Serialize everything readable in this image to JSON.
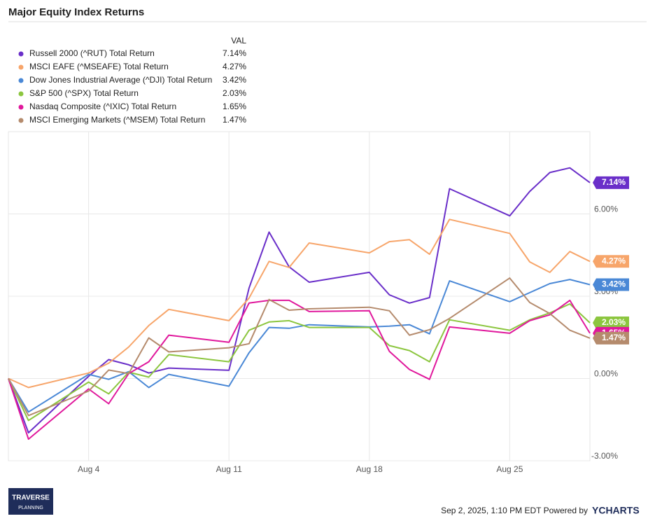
{
  "chart_data": {
    "type": "line",
    "title": "Major Equity Index Returns",
    "legend_title": "VAL",
    "x": [
      "Jul 31",
      "Aug 1",
      "Aug 4",
      "Aug 5",
      "Aug 6",
      "Aug 7",
      "Aug 8",
      "Aug 11",
      "Aug 12",
      "Aug 13",
      "Aug 14",
      "Aug 15",
      "Aug 18",
      "Aug 19",
      "Aug 20",
      "Aug 21",
      "Aug 22",
      "Aug 25",
      "Aug 26",
      "Aug 27",
      "Aug 28",
      "Aug 29"
    ],
    "xlim": [
      "Jul 31",
      "Aug 29"
    ],
    "xticks": [
      "Aug 4",
      "Aug 11",
      "Aug 18",
      "Aug 25"
    ],
    "ylim": [
      -3,
      9
    ],
    "yticks": [
      {
        "value": -3,
        "label": "-3.00%"
      },
      {
        "value": 0,
        "label": "0.00%"
      },
      {
        "value": 3,
        "label": "3.00%"
      },
      {
        "value": 6,
        "label": "6.00%"
      }
    ],
    "grid": true,
    "series": [
      {
        "name": "Russell 2000 (^RUT) Total Return",
        "color": "#6a2fc9",
        "values": [
          0,
          -1.98,
          0.08,
          0.69,
          0.5,
          0.2,
          0.38,
          0.3,
          3.3,
          5.34,
          4.07,
          3.51,
          3.87,
          3.05,
          2.75,
          2.95,
          6.92,
          5.93,
          6.82,
          7.51,
          7.68,
          7.14
        ],
        "value_labels": [
          null,
          null,
          null,
          null,
          null,
          null,
          null,
          null,
          null,
          null,
          null,
          null,
          null,
          null,
          null,
          null,
          null,
          null,
          null,
          null,
          null,
          "7.14%"
        ]
      },
      {
        "name": "MSCI EAFE (^MSEAFE) Total Return",
        "color": "#f7a56a",
        "values": [
          0,
          -0.33,
          0.2,
          0.56,
          1.15,
          1.93,
          2.52,
          2.11,
          2.93,
          4.27,
          4.05,
          4.94,
          4.58,
          4.99,
          5.06,
          4.53,
          5.8,
          5.29,
          4.25,
          3.87,
          4.63,
          4.27
        ],
        "value_labels": [
          null,
          null,
          null,
          null,
          null,
          null,
          null,
          null,
          null,
          null,
          null,
          null,
          null,
          null,
          null,
          null,
          null,
          null,
          null,
          null,
          null,
          "4.27%"
        ]
      },
      {
        "name": "Dow Jones Industrial Average (^DJI) Total Return",
        "color": "#4a88d6",
        "values": [
          0,
          -1.22,
          0.15,
          -0.03,
          0.25,
          -0.33,
          0.15,
          -0.28,
          0.94,
          1.86,
          1.83,
          1.96,
          1.88,
          1.91,
          1.96,
          1.63,
          3.56,
          2.8,
          3.13,
          3.46,
          3.61,
          3.42
        ],
        "value_labels": [
          null,
          null,
          null,
          null,
          null,
          null,
          null,
          null,
          null,
          null,
          null,
          null,
          null,
          null,
          null,
          null,
          null,
          null,
          null,
          null,
          null,
          "3.42%"
        ]
      },
      {
        "name": "S&P 500 (^SPX) Total Return",
        "color": "#8cc63f",
        "values": [
          0,
          -1.53,
          -0.13,
          -0.56,
          0.23,
          0.05,
          0.87,
          0.61,
          1.76,
          2.06,
          2.11,
          1.86,
          1.86,
          1.2,
          1.02,
          0.61,
          2.14,
          1.76,
          2.14,
          2.39,
          2.72,
          2.03
        ],
        "value_labels": [
          null,
          null,
          null,
          null,
          null,
          null,
          null,
          null,
          null,
          null,
          null,
          null,
          null,
          null,
          null,
          null,
          null,
          null,
          null,
          null,
          null,
          "2.03%"
        ]
      },
      {
        "name": "Nasdaq Composite (^IXIC) Total Return",
        "color": "#e0189c",
        "values": [
          0,
          -2.21,
          -0.38,
          -0.92,
          0.18,
          0.61,
          1.58,
          1.32,
          2.75,
          2.85,
          2.85,
          2.44,
          2.47,
          0.99,
          0.33,
          -0.03,
          1.88,
          1.65,
          2.11,
          2.32,
          2.85,
          1.65
        ],
        "value_labels": [
          null,
          null,
          null,
          null,
          null,
          null,
          null,
          null,
          null,
          null,
          null,
          null,
          null,
          null,
          null,
          null,
          null,
          null,
          null,
          null,
          null,
          "1.65%"
        ]
      },
      {
        "name": "MSCI Emerging Markets (^MSEM) Total Return",
        "color": "#b58b6d",
        "values": [
          0,
          -1.35,
          -0.46,
          0.31,
          0.18,
          1.48,
          0.97,
          1.12,
          1.27,
          2.88,
          2.49,
          2.54,
          2.6,
          2.47,
          1.58,
          1.78,
          2.19,
          3.66,
          2.77,
          2.37,
          1.76,
          1.47
        ],
        "value_labels": [
          null,
          null,
          null,
          null,
          null,
          null,
          null,
          null,
          null,
          null,
          null,
          null,
          null,
          null,
          null,
          null,
          null,
          null,
          null,
          null,
          null,
          "1.47%"
        ]
      }
    ]
  },
  "footer": {
    "timestamp": "Sep 2, 2025, 1:10 PM EDT Powered by",
    "brand": "YCHARTS",
    "logo_top": "TRAVERSE",
    "logo_bottom": "PLANNING"
  }
}
